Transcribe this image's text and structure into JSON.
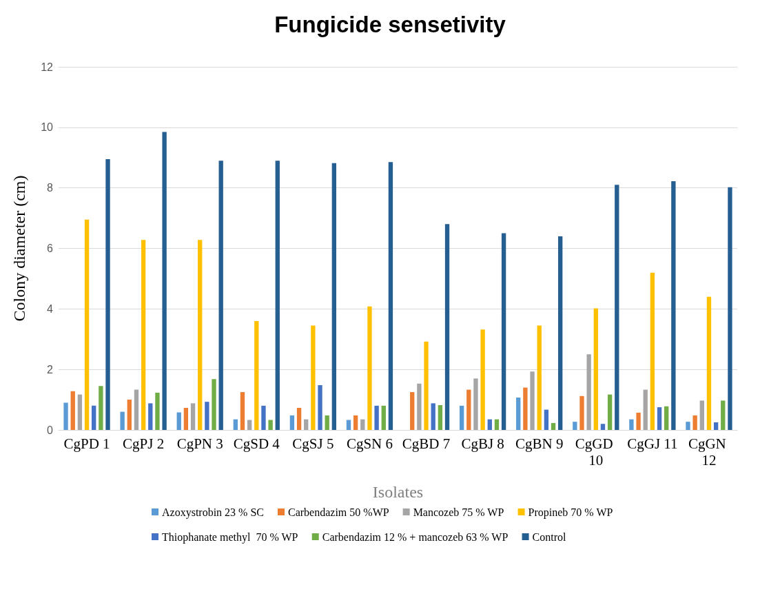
{
  "chart_data": {
    "type": "bar",
    "title": "Fungicide sensetivity",
    "xlabel": "Isolates",
    "ylabel": "Colony diameter (cm)",
    "categories": [
      "CgPD 1",
      "CgPJ 2",
      "CgPN 3",
      "CgSD 4",
      "CgSJ 5",
      "CgSN 6",
      "CgBD 7",
      "CgBJ 8",
      "CgBN 9",
      "CgGD 10",
      "CgGJ 11",
      "CgGN 12"
    ],
    "series": [
      {
        "name": "Azoxystrobin 23 % SC",
        "color": "#5b9bd5",
        "values": [
          0.9,
          0.6,
          0.58,
          0.35,
          0.48,
          0.33,
          0,
          0.8,
          1.07,
          0.27,
          0.35,
          0.27
        ]
      },
      {
        "name": "Carbendazim 50 %WP",
        "color": "#ed7d31",
        "values": [
          1.28,
          1.0,
          0.73,
          1.25,
          0.73,
          0.48,
          1.25,
          1.33,
          1.4,
          1.12,
          0.57,
          0.48
        ]
      },
      {
        "name": "Mancozeb 75 % WP",
        "color": "#a5a5a5",
        "values": [
          1.17,
          1.33,
          0.88,
          0.33,
          0.35,
          0.35,
          1.53,
          1.7,
          1.93,
          2.5,
          1.33,
          0.97
        ]
      },
      {
        "name": "Propineb 70 % WP",
        "color": "#ffc000",
        "values": [
          6.95,
          6.28,
          6.28,
          3.6,
          3.45,
          4.08,
          2.92,
          3.32,
          3.45,
          4.02,
          5.2,
          4.4
        ]
      },
      {
        "name": "Thiophanate methyl  70 % WP",
        "color": "#4472c4",
        "values": [
          0.8,
          0.88,
          0.93,
          0.8,
          1.48,
          0.8,
          0.88,
          0.35,
          0.67,
          0.2,
          0.75,
          0.25
        ]
      },
      {
        "name": "Carbendazim 12 % + mancozeb 63 % WP",
        "color": "#70ad47",
        "values": [
          1.45,
          1.23,
          1.68,
          0.33,
          0.48,
          0.8,
          0.82,
          0.35,
          0.23,
          1.17,
          0.78,
          0.97
        ]
      },
      {
        "name": "Control",
        "color": "#255e91",
        "values": [
          8.95,
          9.85,
          8.9,
          8.9,
          8.82,
          8.85,
          6.8,
          6.5,
          6.4,
          8.1,
          8.22,
          8.02
        ]
      }
    ],
    "ylim": [
      0,
      12
    ],
    "yticks": [
      0,
      2,
      4,
      6,
      8,
      10,
      12
    ],
    "grid": "y",
    "legend": "bottom"
  }
}
